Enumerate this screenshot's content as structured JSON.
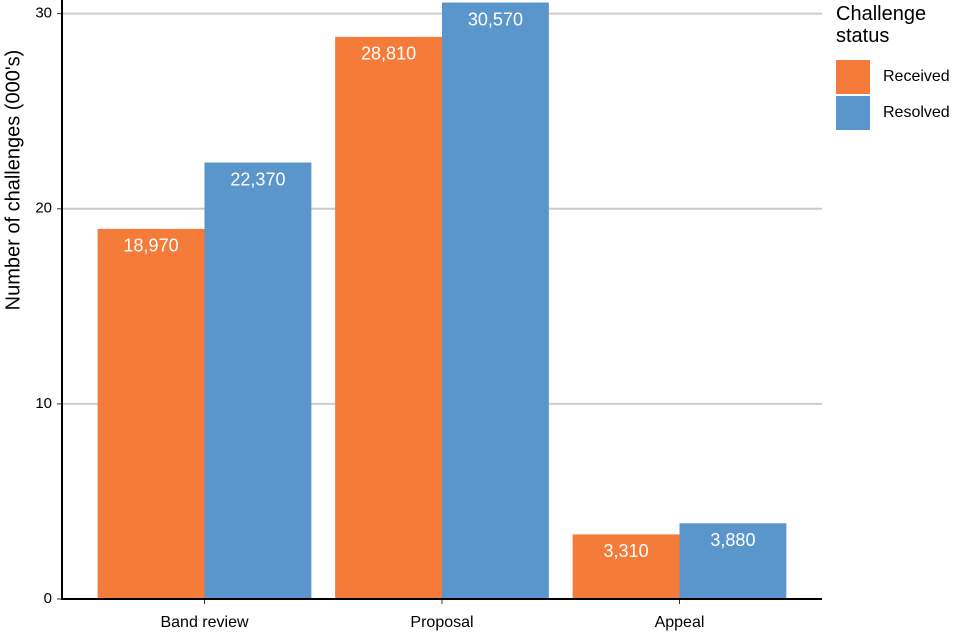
{
  "chart_data": {
    "type": "bar",
    "y_label": "Number of challenges (000's)",
    "categories": [
      "Band review",
      "Proposal",
      "Appeal"
    ],
    "series": [
      {
        "name": "Received",
        "color": "#f47b3a",
        "values": [
          18.97,
          28.81,
          3.31
        ],
        "value_labels": [
          "18,970",
          "28,810",
          "3,310"
        ]
      },
      {
        "name": "Resolved",
        "color": "#5a96cb",
        "values": [
          22.37,
          30.57,
          3.88
        ],
        "value_labels": [
          "22,370",
          "30,570",
          "3,880"
        ]
      }
    ],
    "ylim": [
      0,
      30.7
    ],
    "yticks": [
      0,
      10,
      20,
      30
    ],
    "grid": true,
    "legend_title": "Challenge status",
    "legend_position": "right"
  }
}
